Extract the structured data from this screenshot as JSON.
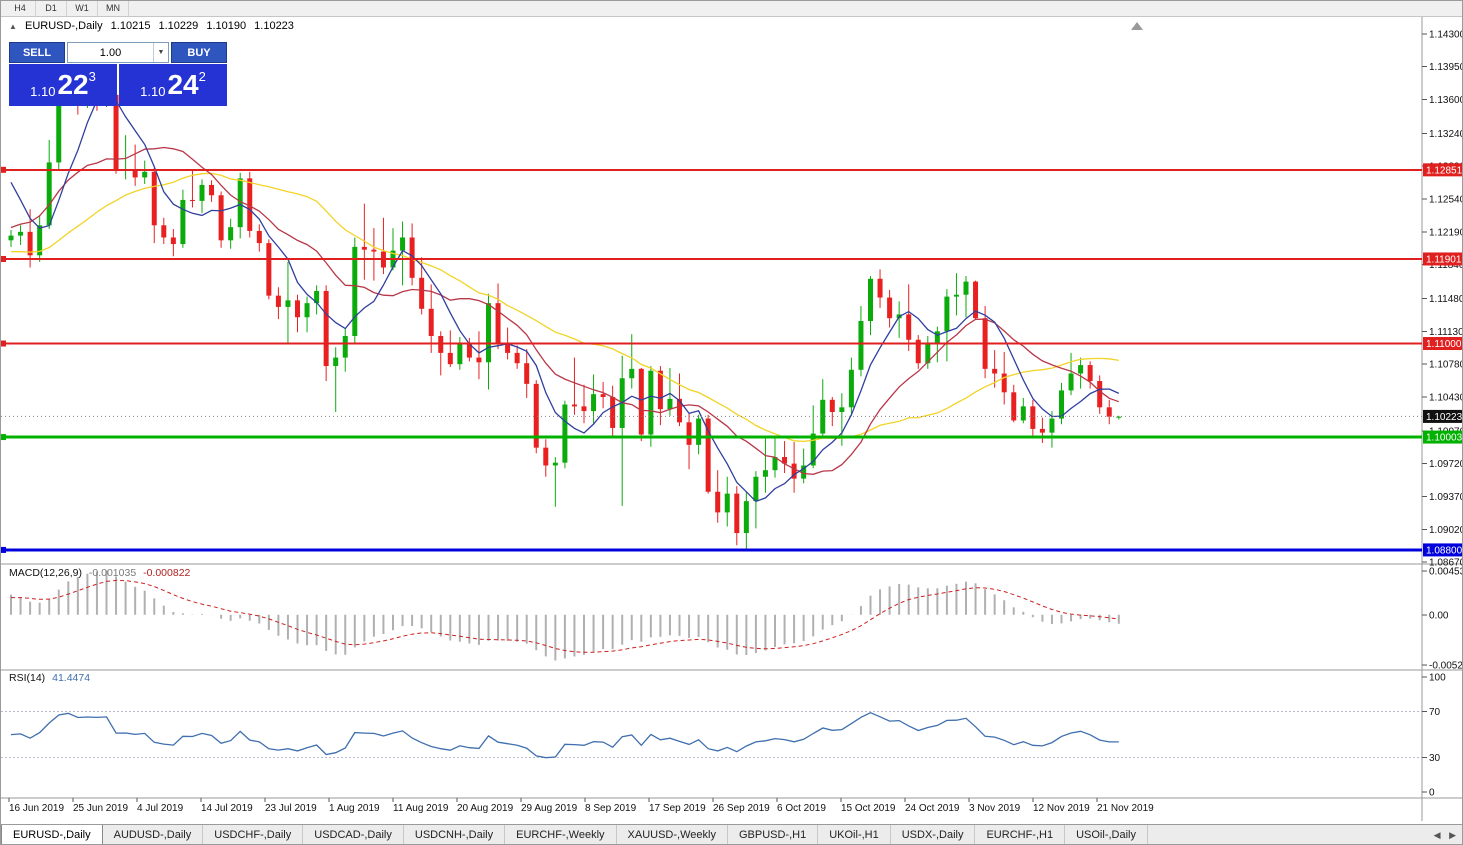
{
  "topbar": {
    "periods": [
      "H4",
      "D1",
      "W1",
      "MN"
    ]
  },
  "icons": {
    "collapse": "▲",
    "dropdown": "▼",
    "scroll_left": "◀",
    "scroll_right": "▶"
  },
  "chart": {
    "title": {
      "symbol": "EURUSD-,Daily",
      "open": "1.10215",
      "high": "1.10229",
      "low": "1.10190",
      "close": "1.10223"
    },
    "trade_panel": {
      "sell_label": "SELL",
      "buy_label": "BUY",
      "volume": "1.00",
      "sell_price": {
        "prefix": "1.10",
        "big": "22",
        "sup": "3"
      },
      "buy_price": {
        "prefix": "1.10",
        "big": "24",
        "sup": "2"
      }
    }
  },
  "chart_data": {
    "type": "candlestick",
    "symbol": "EURUSD",
    "timeframe": "Daily",
    "price_range": [
      1.0865,
      1.1448
    ],
    "y_ticks": [
      "1.14300",
      "1.13950",
      "1.13600",
      "1.13240",
      "1.12890",
      "1.12540",
      "1.12190",
      "1.11840",
      "1.11480",
      "1.11130",
      "1.10780",
      "1.10430",
      "1.10070",
      "1.09720",
      "1.09370",
      "1.09020",
      "1.08670"
    ],
    "x_labels": [
      "16 Jun 2019",
      "25 Jun 2019",
      "4 Jul 2019",
      "14 Jul 2019",
      "23 Jul 2019",
      "1 Aug 2019",
      "11 Aug 2019",
      "20 Aug 2019",
      "29 Aug 2019",
      "8 Sep 2019",
      "17 Sep 2019",
      "26 Sep 2019",
      "6 Oct 2019",
      "15 Oct 2019",
      "24 Oct 2019",
      "3 Nov 2019",
      "12 Nov 2019",
      "21 Nov 2019"
    ],
    "candles": [
      [
        1.121,
        1.1221,
        1.1203,
        1.1215
      ],
      [
        1.1215,
        1.1226,
        1.1205,
        1.1219
      ],
      [
        1.1219,
        1.1243,
        1.1181,
        1.1194
      ],
      [
        1.1194,
        1.1237,
        1.1187,
        1.1226
      ],
      [
        1.1226,
        1.1317,
        1.1222,
        1.1293
      ],
      [
        1.1293,
        1.1378,
        1.1285,
        1.1369
      ],
      [
        1.1369,
        1.1392,
        1.1362,
        1.1388
      ],
      [
        1.1388,
        1.139,
        1.1344,
        1.1366
      ],
      [
        1.1366,
        1.1391,
        1.1351,
        1.1371
      ],
      [
        1.1371,
        1.1381,
        1.1348,
        1.1369
      ],
      [
        1.1369,
        1.139,
        1.1352,
        1.1373
      ],
      [
        1.1365,
        1.1368,
        1.1281,
        1.1285
      ],
      [
        1.1285,
        1.1322,
        1.1275,
        1.1286
      ],
      [
        1.1286,
        1.1312,
        1.1268,
        1.1277
      ],
      [
        1.1277,
        1.1295,
        1.127,
        1.1283
      ],
      [
        1.1283,
        1.1287,
        1.1207,
        1.1226
      ],
      [
        1.1226,
        1.1234,
        1.1206,
        1.1213
      ],
      [
        1.1213,
        1.1222,
        1.1193,
        1.1206
      ],
      [
        1.1206,
        1.1264,
        1.1202,
        1.1253
      ],
      [
        1.1253,
        1.1286,
        1.1245,
        1.1252
      ],
      [
        1.1252,
        1.1275,
        1.1239,
        1.1269
      ],
      [
        1.1269,
        1.1274,
        1.1251,
        1.1258
      ],
      [
        1.1258,
        1.1262,
        1.1202,
        1.121
      ],
      [
        1.121,
        1.1233,
        1.1201,
        1.1224
      ],
      [
        1.1224,
        1.1282,
        1.1212,
        1.1276
      ],
      [
        1.1276,
        1.1283,
        1.1213,
        1.122
      ],
      [
        1.122,
        1.1227,
        1.1198,
        1.1207
      ],
      [
        1.1207,
        1.1211,
        1.1147,
        1.1151
      ],
      [
        1.1151,
        1.116,
        1.1126,
        1.1139
      ],
      [
        1.1139,
        1.1187,
        1.1101,
        1.1146
      ],
      [
        1.1146,
        1.1152,
        1.1112,
        1.1128
      ],
      [
        1.1128,
        1.115,
        1.1112,
        1.1143
      ],
      [
        1.1143,
        1.1162,
        1.1131,
        1.1156
      ],
      [
        1.1156,
        1.1162,
        1.106,
        1.1076
      ],
      [
        1.1076,
        1.1096,
        1.1027,
        1.1085
      ],
      [
        1.1085,
        1.1116,
        1.107,
        1.1108
      ],
      [
        1.1108,
        1.1213,
        1.1101,
        1.1203
      ],
      [
        1.1203,
        1.1249,
        1.1168,
        1.12
      ],
      [
        1.12,
        1.1223,
        1.1167,
        1.1198
      ],
      [
        1.1198,
        1.1234,
        1.1174,
        1.1181
      ],
      [
        1.1181,
        1.1223,
        1.1178,
        1.1199
      ],
      [
        1.1199,
        1.123,
        1.1162,
        1.1213
      ],
      [
        1.1213,
        1.1228,
        1.1162,
        1.117
      ],
      [
        1.117,
        1.1192,
        1.1131,
        1.1137
      ],
      [
        1.1137,
        1.1163,
        1.109,
        1.1108
      ],
      [
        1.1108,
        1.1113,
        1.1066,
        1.109
      ],
      [
        1.109,
        1.1114,
        1.1075,
        1.1078
      ],
      [
        1.1078,
        1.1107,
        1.1072,
        1.1099
      ],
      [
        1.1099,
        1.1106,
        1.1081,
        1.1085
      ],
      [
        1.1085,
        1.1113,
        1.1062,
        1.108
      ],
      [
        1.108,
        1.1153,
        1.1051,
        1.1143
      ],
      [
        1.1143,
        1.1164,
        1.1094,
        1.1101
      ],
      [
        1.1101,
        1.1117,
        1.1083,
        1.109
      ],
      [
        1.109,
        1.1098,
        1.1073,
        1.1079
      ],
      [
        1.1079,
        1.1094,
        1.1042,
        1.1057
      ],
      [
        1.1057,
        1.1061,
        1.0983,
        1.0989
      ],
      [
        1.0989,
        1.0998,
        1.0958,
        1.097
      ],
      [
        1.097,
        1.0979,
        1.0926,
        1.0973
      ],
      [
        1.0973,
        1.1039,
        1.0967,
        1.1035
      ],
      [
        1.1035,
        1.1085,
        1.1024,
        1.1033
      ],
      [
        1.1033,
        1.1056,
        1.1015,
        1.1028
      ],
      [
        1.1028,
        1.1067,
        1.1015,
        1.1046
      ],
      [
        1.1046,
        1.1059,
        1.1031,
        1.1043
      ],
      [
        1.1043,
        1.1055,
        1.0999,
        1.101
      ],
      [
        1.101,
        1.1087,
        1.0927,
        1.1063
      ],
      [
        1.1063,
        1.111,
        1.1052,
        1.1073
      ],
      [
        1.1073,
        1.1074,
        1.0996,
        1.1003
      ],
      [
        1.1003,
        1.1076,
        1.099,
        1.1071
      ],
      [
        1.1071,
        1.1076,
        1.1013,
        1.103
      ],
      [
        1.103,
        1.1074,
        1.1023,
        1.1041
      ],
      [
        1.1041,
        1.1068,
        1.1012,
        1.1016
      ],
      [
        1.1016,
        1.1025,
        1.0966,
        1.0992
      ],
      [
        1.0992,
        1.1024,
        1.0982,
        1.102
      ],
      [
        1.102,
        1.1024,
        1.094,
        1.0942
      ],
      [
        1.0942,
        1.0965,
        1.0909,
        1.092
      ],
      [
        1.092,
        1.0958,
        1.0905,
        1.094
      ],
      [
        1.094,
        1.0948,
        1.0885,
        1.0898
      ],
      [
        1.0898,
        1.0942,
        1.0879,
        1.0932
      ],
      [
        1.0932,
        1.0964,
        1.0903,
        1.0958
      ],
      [
        1.0958,
        1.0999,
        1.0941,
        1.0965
      ],
      [
        1.0965,
        1.0999,
        1.0957,
        1.0979
      ],
      [
        1.0979,
        1.0996,
        1.0962,
        1.0972
      ],
      [
        1.0972,
        1.0995,
        1.0941,
        1.0956
      ],
      [
        1.0956,
        1.0988,
        1.0951,
        1.097
      ],
      [
        1.097,
        1.1034,
        1.0967,
        1.1004
      ],
      [
        1.1004,
        1.1062,
        1.1002,
        1.104
      ],
      [
        1.104,
        1.1043,
        1.1012,
        1.1027
      ],
      [
        1.1027,
        1.1047,
        1.0991,
        1.1032
      ],
      [
        1.1032,
        1.1085,
        1.1023,
        1.1072
      ],
      [
        1.1072,
        1.114,
        1.1065,
        1.1124
      ],
      [
        1.1124,
        1.1172,
        1.1109,
        1.1169
      ],
      [
        1.1169,
        1.1179,
        1.1138,
        1.1149
      ],
      [
        1.1149,
        1.1157,
        1.1117,
        1.1127
      ],
      [
        1.1127,
        1.1145,
        1.1106,
        1.1131
      ],
      [
        1.1131,
        1.1163,
        1.1092,
        1.1104
      ],
      [
        1.1104,
        1.1109,
        1.1073,
        1.1079
      ],
      [
        1.1079,
        1.1108,
        1.1073,
        1.1099
      ],
      [
        1.1099,
        1.1118,
        1.108,
        1.1113
      ],
      [
        1.1113,
        1.1158,
        1.1081,
        1.115
      ],
      [
        1.115,
        1.1175,
        1.113,
        1.1152
      ],
      [
        1.1152,
        1.1172,
        1.1128,
        1.1166
      ],
      [
        1.1166,
        1.1167,
        1.1126,
        1.1127
      ],
      [
        1.1127,
        1.114,
        1.1063,
        1.1073
      ],
      [
        1.1073,
        1.1093,
        1.1053,
        1.1068
      ],
      [
        1.1068,
        1.1091,
        1.1035,
        1.1048
      ],
      [
        1.1048,
        1.1056,
        1.1016,
        1.1018
      ],
      [
        1.1018,
        1.1042,
        1.1015,
        1.1033
      ],
      [
        1.1033,
        1.104,
        1.1002,
        1.1009
      ],
      [
        1.1009,
        1.1021,
        1.0994,
        1.1005
      ],
      [
        1.1005,
        1.1028,
        1.0989,
        1.102
      ],
      [
        1.102,
        1.1058,
        1.1014,
        1.105
      ],
      [
        1.105,
        1.109,
        1.1045,
        1.1068
      ],
      [
        1.1068,
        1.1085,
        1.1052,
        1.1077
      ],
      [
        1.1077,
        1.1081,
        1.1052,
        1.106
      ],
      [
        1.106,
        1.1066,
        1.1025,
        1.1032
      ],
      [
        1.1032,
        1.104,
        1.1014,
        1.1022
      ],
      [
        1.1021,
        1.1023,
        1.1019,
        1.1022
      ]
    ],
    "ma_warmup": [
      1.1186,
      1.121,
      1.1224,
      1.1223,
      1.1206,
      1.1204,
      1.1177,
      1.1158,
      1.1163,
      1.1166,
      1.1169,
      1.1151,
      1.1182,
      1.1134,
      1.112,
      1.1167,
      1.1193,
      1.1168,
      1.1166,
      1.1131,
      1.1128,
      1.1167,
      1.122,
      1.125,
      1.127,
      1.1333,
      1.1311,
      1.1288,
      1.1277,
      1.1207
    ],
    "moving_averages": [
      {
        "name": "fast",
        "period": 6,
        "color": "#2f3f9f"
      },
      {
        "name": "mid",
        "period": 14,
        "color": "#b93848"
      },
      {
        "name": "slow",
        "period": 28,
        "color": "#f2d327"
      }
    ],
    "hlines": [
      {
        "price": 1.12851,
        "label": "1.12851",
        "color": "#e01f1f",
        "width": 2
      },
      {
        "price": 1.11901,
        "label": "1.11901",
        "color": "#e01f1f",
        "width": 2
      },
      {
        "price": 1.11,
        "label": "1.11000",
        "color": "#e01f1f",
        "width": 2
      },
      {
        "price": 1.10003,
        "label": "1.10003",
        "color": "#00b200",
        "width": 3
      },
      {
        "price": 1.088,
        "label": "1.08800",
        "color": "#0000dd",
        "width": 3
      }
    ],
    "current_price": {
      "value": 1.10223,
      "label": "1.10223",
      "color": "#111111"
    },
    "colors": {
      "up": "#0cab0c",
      "down": "#e82020",
      "macd_bar": "#b0b0b0",
      "macd_signal": "#cc2222",
      "rsi_line": "#3f6fae",
      "rsi_levels": "#b9b9d0"
    },
    "macd": {
      "label": "MACD(12,26,9)",
      "value_main": "-0.001035",
      "value_signal": "-0.000822",
      "fast": 12,
      "slow": 26,
      "signal": 9,
      "axis_max": 0.004536,
      "axis_min": -0.005205,
      "axis_labels": [
        "0.004536",
        "0.00",
        "-0.005205"
      ]
    },
    "rsi": {
      "label": "RSI(14)",
      "value": "41.4474",
      "period": 14,
      "levels": [
        70,
        30
      ],
      "axis_labels": [
        "100",
        "70",
        "30",
        "0"
      ]
    }
  },
  "bottom_tabs": {
    "tabs": [
      {
        "label": "EURUSD-,Daily",
        "active": true
      },
      {
        "label": "AUDUSD-,Daily",
        "active": false
      },
      {
        "label": "USDCHF-,Daily",
        "active": false
      },
      {
        "label": "USDCAD-,Daily",
        "active": false
      },
      {
        "label": "USDCNH-,Daily",
        "active": false
      },
      {
        "label": "EURCHF-,Weekly",
        "active": false
      },
      {
        "label": "XAUUSD-,Weekly",
        "active": false
      },
      {
        "label": "GBPUSD-,H1",
        "active": false
      },
      {
        "label": "UKOil-,H1",
        "active": false
      },
      {
        "label": "USDX-,Daily",
        "active": false
      },
      {
        "label": "EURCHF-,H1",
        "active": false
      },
      {
        "label": "USOil-,Daily",
        "active": false
      }
    ]
  }
}
